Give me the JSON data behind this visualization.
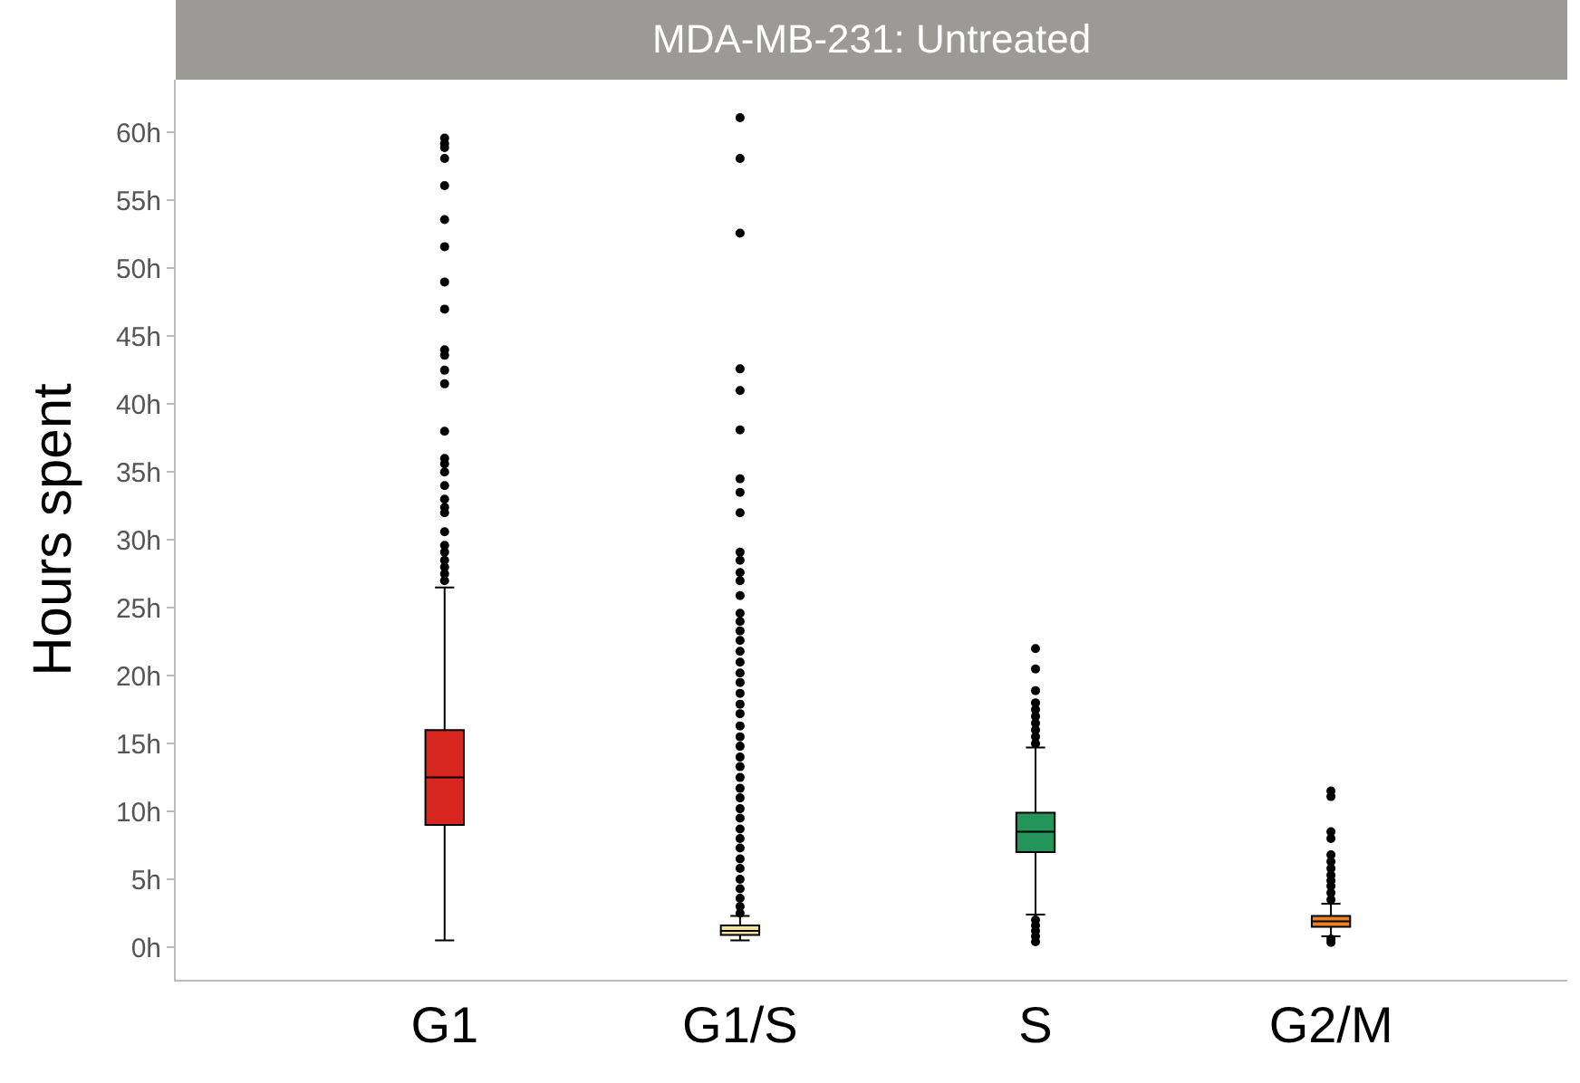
{
  "chart_data": {
    "type": "box",
    "title": "MDA-MB-231: Untreated",
    "ylabel": "Hours spent",
    "categories": [
      "G1",
      "G1/S",
      "S",
      "G2/M"
    ],
    "colors": [
      "#d7261e",
      "#f5e39a",
      "#23955a",
      "#e8822a"
    ],
    "boxes": [
      {
        "low": 0.5,
        "q1": 9.0,
        "median": 12.5,
        "q3": 16.0,
        "high": 26.5,
        "outliers": [
          59.6,
          59.2,
          58.9,
          58.1,
          56.1,
          53.6,
          51.6,
          49.0,
          47.0,
          44.0,
          43.6,
          42.5,
          41.5,
          38.0,
          36.0,
          35.6,
          35.0,
          34.0,
          33.0,
          32.4,
          32.0,
          30.6,
          29.6,
          29.1,
          28.5,
          28.0,
          27.5,
          27.0
        ]
      },
      {
        "low": 0.5,
        "q1": 0.9,
        "median": 1.2,
        "q3": 1.6,
        "high": 2.3,
        "outliers": [
          61.1,
          58.1,
          52.6,
          42.6,
          41.0,
          38.1,
          34.5,
          33.5,
          32.0,
          29.1,
          28.5,
          27.6,
          27.0,
          25.9,
          24.6,
          24.0,
          23.3,
          22.6,
          21.8,
          21.0,
          20.2,
          19.5,
          18.7,
          17.9,
          17.2,
          16.3,
          15.5,
          14.8,
          14.0,
          13.3,
          12.5,
          11.7,
          11.0,
          10.2,
          9.5,
          8.7,
          8.0,
          7.3,
          6.5,
          5.8,
          5.0,
          4.3,
          3.6,
          3.0,
          2.5
        ]
      },
      {
        "low": 2.4,
        "q1": 7.0,
        "median": 8.5,
        "q3": 9.9,
        "high": 14.7,
        "outliers": [
          22.0,
          20.5,
          18.9,
          18.0,
          17.5,
          17.0,
          16.5,
          16.0,
          15.5,
          15.0,
          2.0,
          1.6,
          1.2,
          0.8,
          0.4
        ]
      },
      {
        "low": 0.8,
        "q1": 1.5,
        "median": 1.9,
        "q3": 2.3,
        "high": 3.2,
        "outliers": [
          11.5,
          11.1,
          8.5,
          8.0,
          6.8,
          6.3,
          5.8,
          5.3,
          4.9,
          4.5,
          4.0,
          3.5,
          0.6,
          0.35
        ]
      }
    ],
    "ylim": [
      -2.4,
      63.9
    ],
    "yticks": [
      {
        "value": 0,
        "label": "0h"
      },
      {
        "value": 5,
        "label": "5h"
      },
      {
        "value": 10,
        "label": "10h"
      },
      {
        "value": 15,
        "label": "15h"
      },
      {
        "value": 20,
        "label": "20h"
      },
      {
        "value": 25,
        "label": "25h"
      },
      {
        "value": 30,
        "label": "30h"
      },
      {
        "value": 35,
        "label": "35h"
      },
      {
        "value": 40,
        "label": "40h"
      },
      {
        "value": 45,
        "label": "45h"
      },
      {
        "value": 50,
        "label": "50h"
      },
      {
        "value": 55,
        "label": "55h"
      },
      {
        "value": 60,
        "label": "60h"
      }
    ],
    "marker": "circle"
  }
}
